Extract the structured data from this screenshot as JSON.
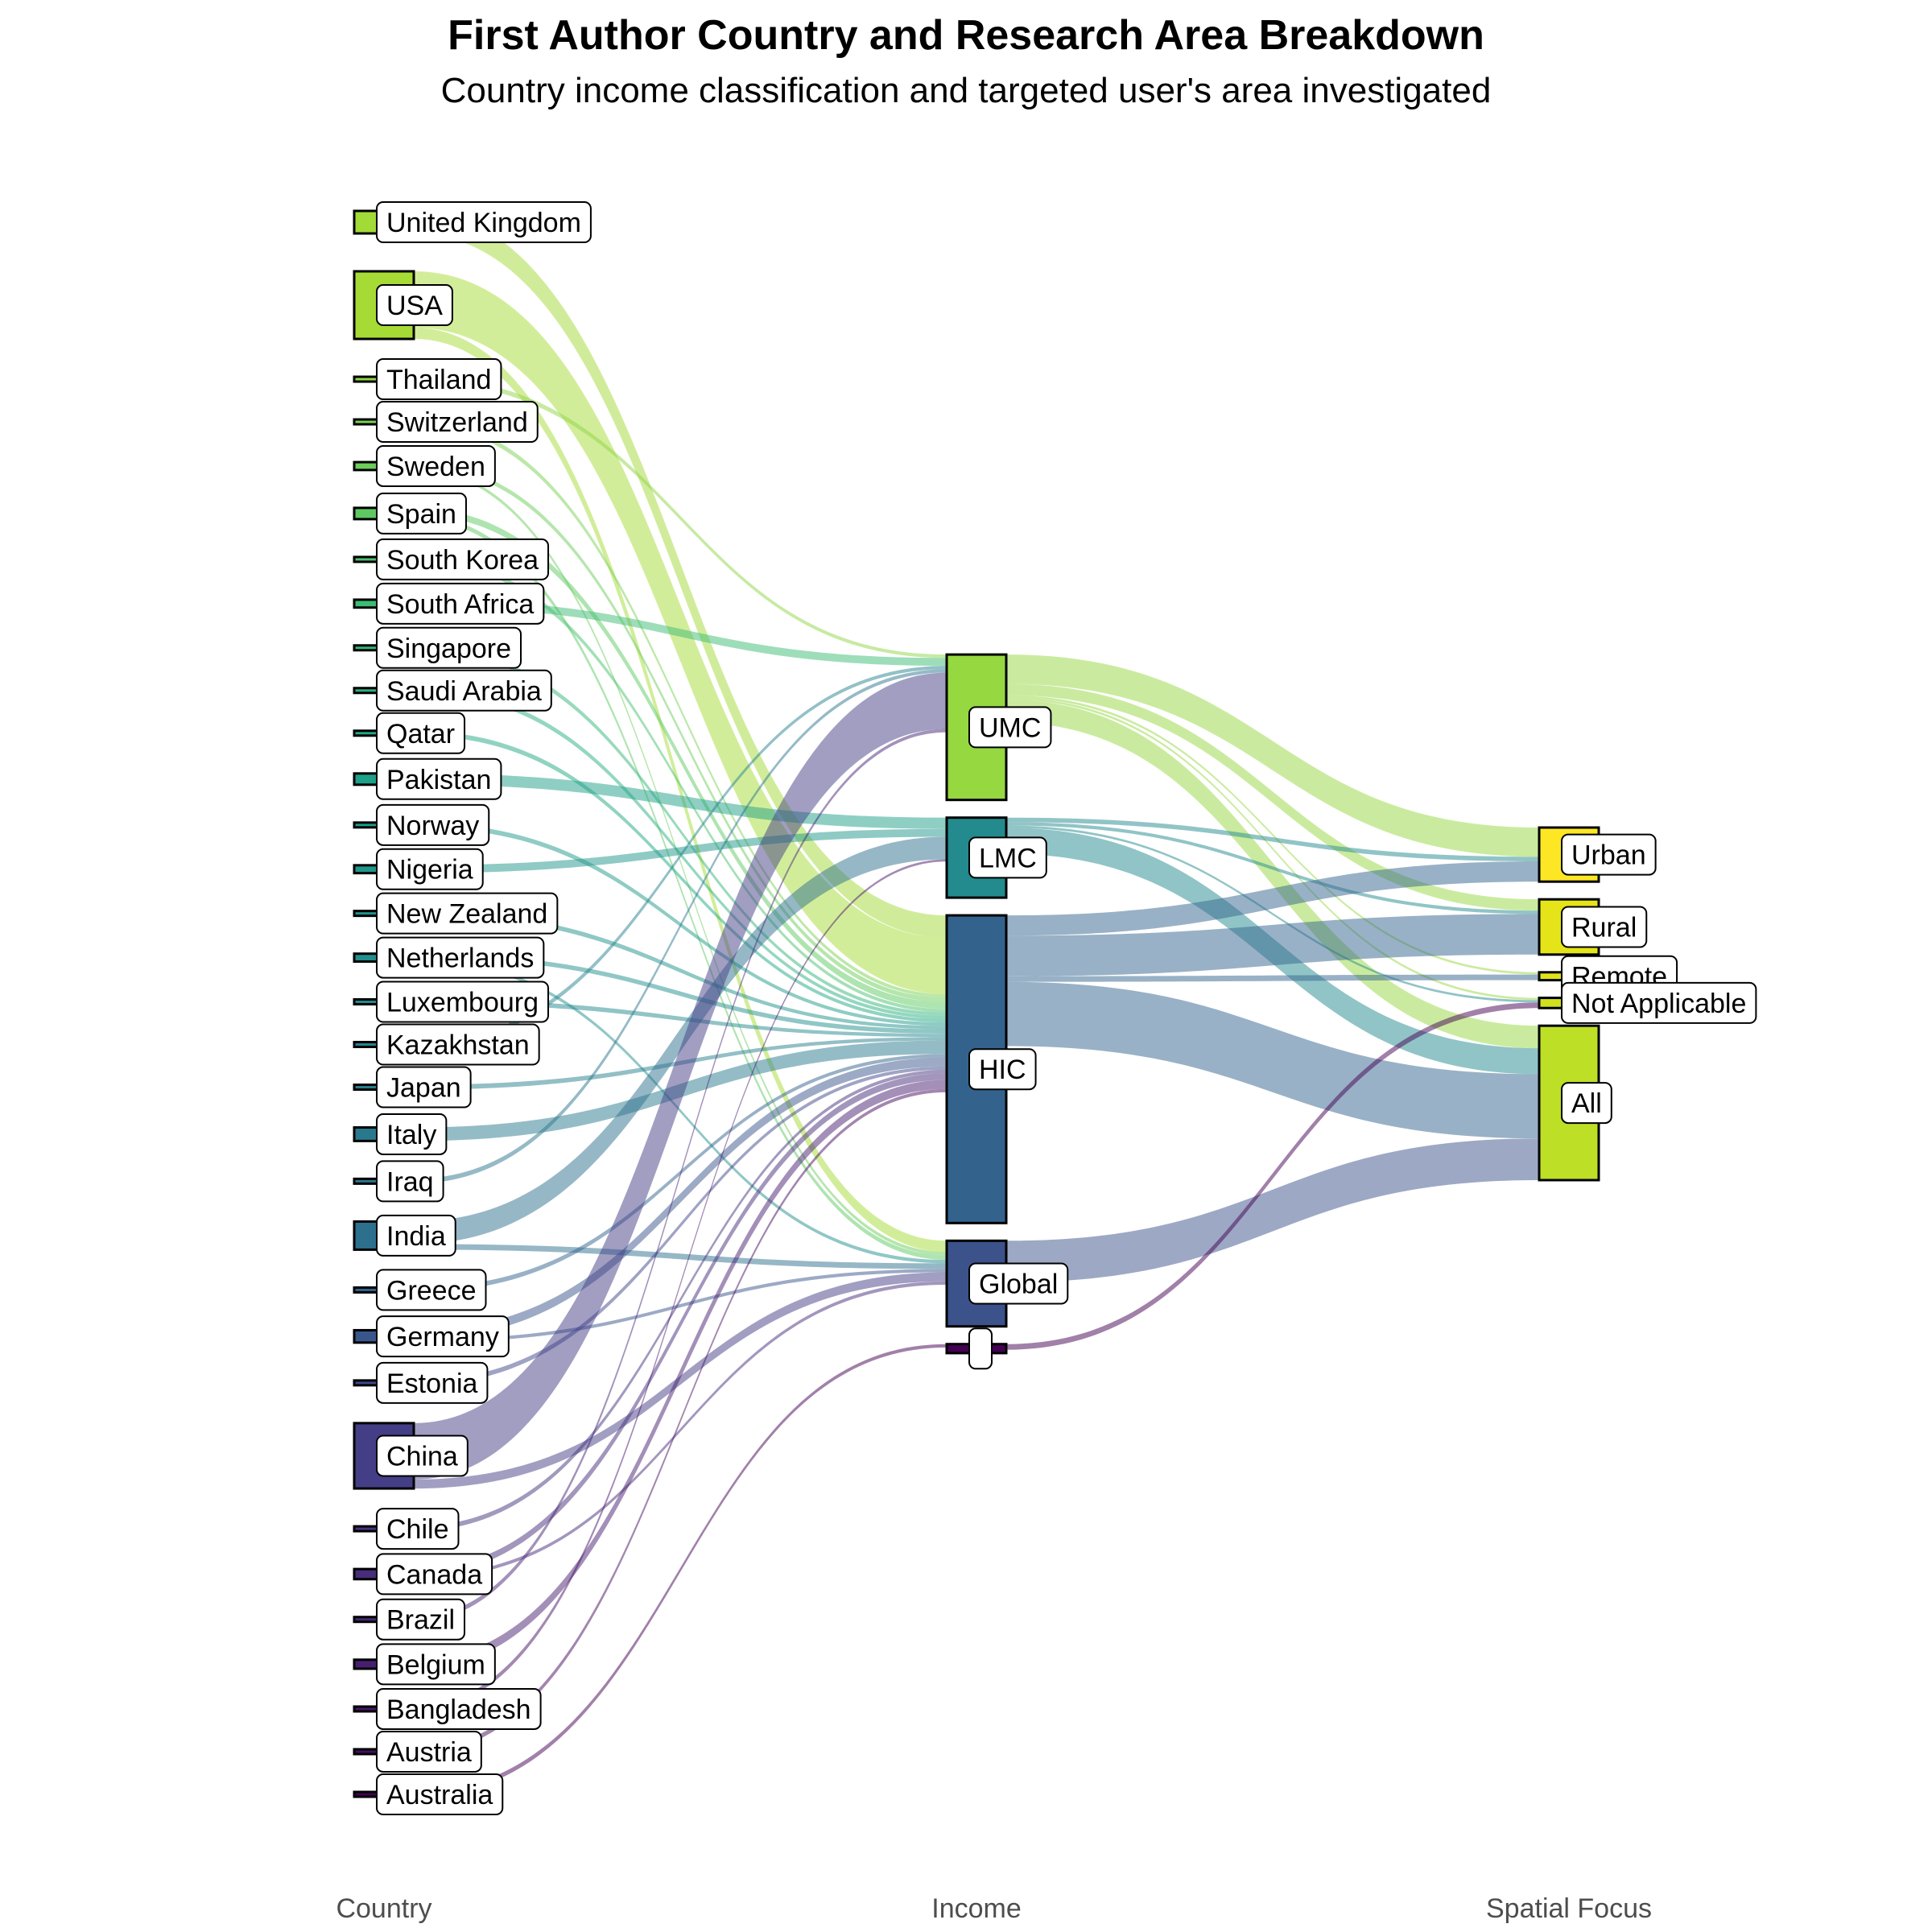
{
  "title": "First Author Country and Research Area Breakdown",
  "subtitle": "Country income classification and targeted user's area investigated",
  "chart_data": {
    "type": "sankey",
    "axes": [
      "Country",
      "Income",
      "Spatial Focus"
    ],
    "nodes": {
      "country": [
        {
          "name": "United Kingdom",
          "color": "#a2da37"
        },
        {
          "name": "USA",
          "color": "#a6db35"
        },
        {
          "name": "Thailand",
          "color": "#8ed645"
        },
        {
          "name": "Switzerland",
          "color": "#7ad151"
        },
        {
          "name": "Sweden",
          "color": "#6ccd5a"
        },
        {
          "name": "Spain",
          "color": "#5ec962"
        },
        {
          "name": "South Korea",
          "color": "#4ac16d"
        },
        {
          "name": "South Africa",
          "color": "#3dbc74"
        },
        {
          "name": "Singapore",
          "color": "#34b679"
        },
        {
          "name": "Saudi Arabia",
          "color": "#2ab07f"
        },
        {
          "name": "Qatar",
          "color": "#22a884"
        },
        {
          "name": "Pakistan",
          "color": "#1fa088"
        },
        {
          "name": "Norway",
          "color": "#1f9a8a"
        },
        {
          "name": "Nigeria",
          "color": "#1f968b"
        },
        {
          "name": "New Zealand",
          "color": "#20928c"
        },
        {
          "name": "Netherlands",
          "color": "#218f8d"
        },
        {
          "name": "Luxembourg",
          "color": "#23898e"
        },
        {
          "name": "Kazakhstan",
          "color": "#25848e"
        },
        {
          "name": "Japan",
          "color": "#277f8e"
        },
        {
          "name": "Italy",
          "color": "#29798e"
        },
        {
          "name": "Iraq",
          "color": "#2b758e"
        },
        {
          "name": "India",
          "color": "#2d708e"
        },
        {
          "name": "Greece",
          "color": "#33638d"
        },
        {
          "name": "Germany",
          "color": "#39568c"
        },
        {
          "name": "Estonia",
          "color": "#3f4889"
        },
        {
          "name": "China",
          "color": "#433e85"
        },
        {
          "name": "Chile",
          "color": "#46337e"
        },
        {
          "name": "Canada",
          "color": "#472d7b"
        },
        {
          "name": "Brazil",
          "color": "#482576"
        },
        {
          "name": "Belgium",
          "color": "#481f70"
        },
        {
          "name": "Bangladesh",
          "color": "#481467"
        },
        {
          "name": "Austria",
          "color": "#470d60"
        },
        {
          "name": "Australia",
          "color": "#440154"
        }
      ],
      "income": [
        {
          "name": "UMC",
          "color": "#95d840"
        },
        {
          "name": "LMC",
          "color": "#238a8d"
        },
        {
          "name": "HIC",
          "color": "#33638d"
        },
        {
          "name": "Global",
          "color": "#3b528b"
        },
        {
          "name": "",
          "color": "#440154"
        }
      ],
      "spatial": [
        {
          "name": "Urban",
          "color": "#fde725"
        },
        {
          "name": "Rural",
          "color": "#e5e419"
        },
        {
          "name": "Remote",
          "color": "#dfe318"
        },
        {
          "name": "Not Applicable",
          "color": "#d0e11c"
        },
        {
          "name": "All",
          "color": "#bddf26"
        }
      ]
    },
    "country_income_links": [
      {
        "source": "United Kingdom",
        "target": "HIC",
        "value": 2
      },
      {
        "source": "USA",
        "target": "HIC",
        "value": 5
      },
      {
        "source": "USA",
        "target": "Global",
        "value": 1
      },
      {
        "source": "Thailand",
        "target": "UMC",
        "value": 0.3
      },
      {
        "source": "Switzerland",
        "target": "HIC",
        "value": 0.3
      },
      {
        "source": "Sweden",
        "target": "HIC",
        "value": 0.4
      },
      {
        "source": "Sweden",
        "target": "Global",
        "value": 0.3
      },
      {
        "source": "Spain",
        "target": "HIC",
        "value": 0.6
      },
      {
        "source": "Spain",
        "target": "Global",
        "value": 0.4
      },
      {
        "source": "South Korea",
        "target": "HIC",
        "value": 0.3
      },
      {
        "source": "South Africa",
        "target": "UMC",
        "value": 0.7
      },
      {
        "source": "Singapore",
        "target": "HIC",
        "value": 0.3
      },
      {
        "source": "Saudi Arabia",
        "target": "HIC",
        "value": 0.3
      },
      {
        "source": "Qatar",
        "target": "HIC",
        "value": 0.3
      },
      {
        "source": "Pakistan",
        "target": "LMC",
        "value": 1
      },
      {
        "source": "Norway",
        "target": "HIC",
        "value": 0.3
      },
      {
        "source": "Nigeria",
        "target": "LMC",
        "value": 0.7
      },
      {
        "source": "New Zealand",
        "target": "HIC",
        "value": 0.3
      },
      {
        "source": "Netherlands",
        "target": "HIC",
        "value": 0.4
      },
      {
        "source": "Netherlands",
        "target": "Global",
        "value": 0.3
      },
      {
        "source": "Luxembourg",
        "target": "HIC",
        "value": 0.3
      },
      {
        "source": "Kazakhstan",
        "target": "UMC",
        "value": 0.3
      },
      {
        "source": "Japan",
        "target": "HIC",
        "value": 0.3
      },
      {
        "source": "Italy",
        "target": "HIC",
        "value": 1.2
      },
      {
        "source": "Iraq",
        "target": "UMC",
        "value": 0.3
      },
      {
        "source": "India",
        "target": "LMC",
        "value": 2
      },
      {
        "source": "India",
        "target": "Global",
        "value": 0.5
      },
      {
        "source": "Greece",
        "target": "HIC",
        "value": 0.3
      },
      {
        "source": "Germany",
        "target": "HIC",
        "value": 0.8
      },
      {
        "source": "Germany",
        "target": "Global",
        "value": 0.3
      },
      {
        "source": "Estonia",
        "target": "HIC",
        "value": 0.3
      },
      {
        "source": "China",
        "target": "UMC",
        "value": 5
      },
      {
        "source": "China",
        "target": "Global",
        "value": 0.8
      },
      {
        "source": "Chile",
        "target": "HIC",
        "value": 0.3
      },
      {
        "source": "Canada",
        "target": "HIC",
        "value": 0.6
      },
      {
        "source": "Canada",
        "target": "Global",
        "value": 0.3
      },
      {
        "source": "Brazil",
        "target": "UMC",
        "value": 0.3
      },
      {
        "source": "Belgium",
        "target": "HIC",
        "value": 0.8
      },
      {
        "source": "Bangladesh",
        "target": "LMC",
        "value": 0.2
      },
      {
        "source": "Austria",
        "target": "HIC",
        "value": 0.3
      },
      {
        "source": "Australia",
        "target": "",
        "value": 0.3
      }
    ],
    "income_spatial_links": [
      {
        "source": "UMC",
        "target": "Urban",
        "value": 2.6
      },
      {
        "source": "UMC",
        "target": "Rural",
        "value": 1.0
      },
      {
        "source": "UMC",
        "target": "Remote",
        "value": 0.2
      },
      {
        "source": "UMC",
        "target": "Not Applicable",
        "value": 0.2
      },
      {
        "source": "UMC",
        "target": "All",
        "value": 2.0
      },
      {
        "source": "LMC",
        "target": "Urban",
        "value": 0.4
      },
      {
        "source": "LMC",
        "target": "Rural",
        "value": 0.3
      },
      {
        "source": "LMC",
        "target": "Not Applicable",
        "value": 0.2
      },
      {
        "source": "LMC",
        "target": "All",
        "value": 2.3
      },
      {
        "source": "HIC",
        "target": "Urban",
        "value": 1.8
      },
      {
        "source": "HIC",
        "target": "Rural",
        "value": 3.6
      },
      {
        "source": "HIC",
        "target": "Remote",
        "value": 0.5
      },
      {
        "source": "HIC",
        "target": "All",
        "value": 5.7
      },
      {
        "source": "Global",
        "target": "All",
        "value": 3.7
      },
      {
        "source": "",
        "target": "Not Applicable",
        "value": 0.5
      }
    ]
  }
}
